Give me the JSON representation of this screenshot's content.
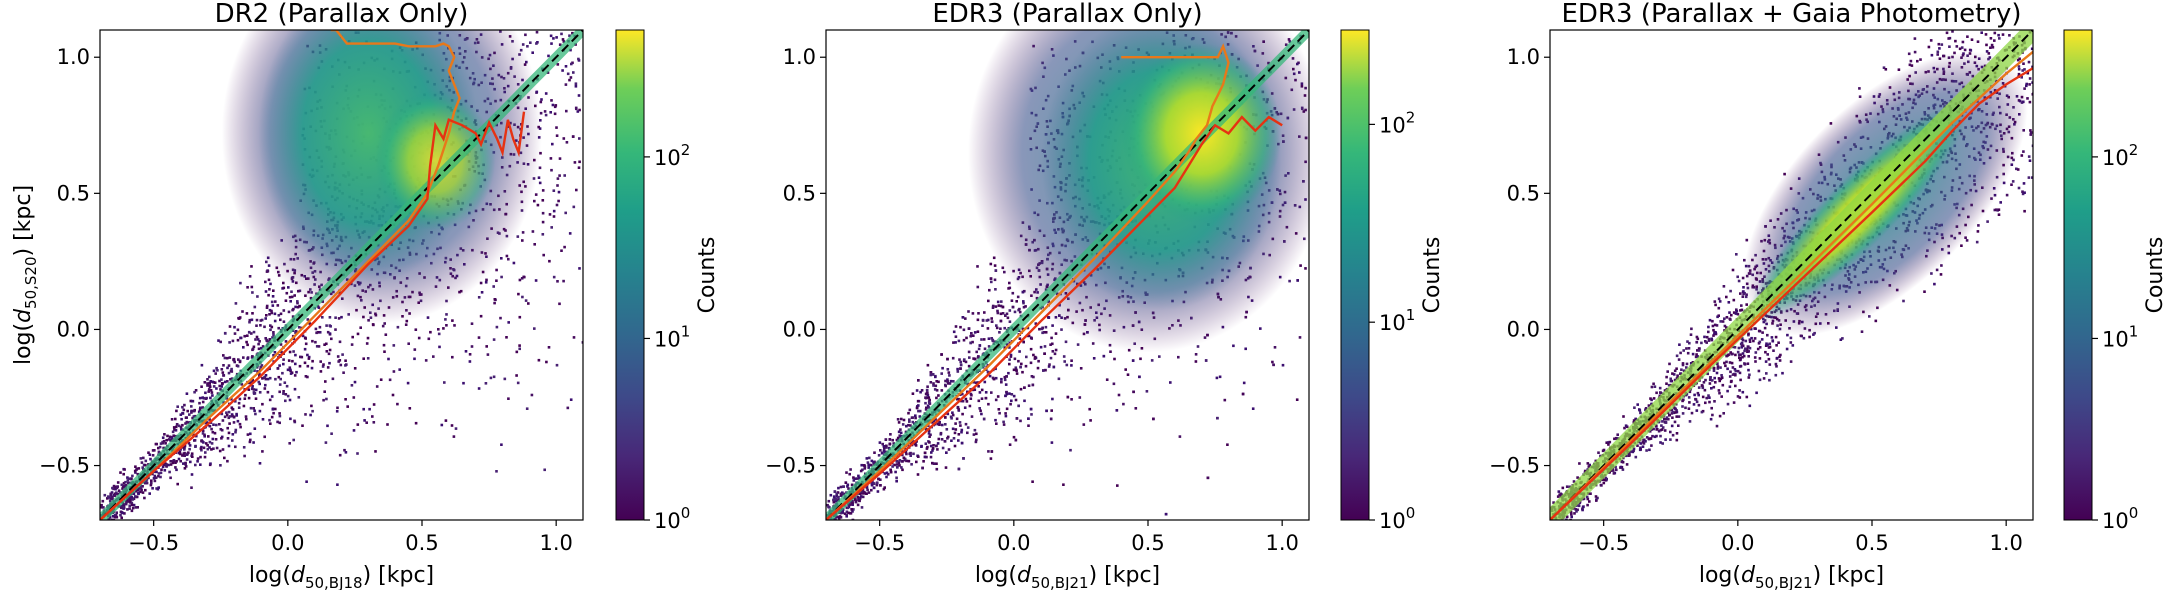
{
  "chart_data": [
    {
      "type": "heatmap",
      "title": "DR2 (Parallax Only)",
      "xlabel_prefix": "log(",
      "xlabel_var": "d",
      "xlabel_sub": "50,BJ18",
      "xlabel_suffix": ") [kpc]",
      "ylabel_prefix": "log(",
      "ylabel_var": "d",
      "ylabel_sub": "50,S20",
      "ylabel_suffix": ") [kpc]",
      "xlim": [
        -0.7,
        1.1
      ],
      "ylim": [
        -0.7,
        1.1
      ],
      "xticks": [
        "−0.5",
        "0.0",
        "0.5",
        "1.0"
      ],
      "yticks": [
        "−0.5",
        "0.0",
        "0.5",
        "1.0"
      ],
      "colorbar": {
        "label": "Counts",
        "scale": "log",
        "range": [
          1,
          500
        ],
        "ticks": [
          "10",
          "10",
          "10"
        ],
        "tick_exponents": [
          "0",
          "1",
          "2"
        ]
      },
      "reference_line": {
        "style": "dashed",
        "color": "#000000",
        "x": [
          -0.7,
          1.1
        ],
        "y": [
          -0.7,
          1.1
        ]
      },
      "series": [
        {
          "color": "#e8781a",
          "x": [
            -0.7,
            -0.5,
            -0.3,
            -0.1,
            0.1,
            0.3,
            0.45,
            0.52,
            0.56,
            0.6,
            0.62,
            0.64,
            0.62,
            0.6,
            0.62,
            0.6,
            0.58,
            0.55,
            0.5,
            0.45,
            0.4,
            0.3,
            0.22,
            0.18,
            0.16
          ],
          "y": [
            -0.7,
            -0.52,
            -0.33,
            -0.15,
            0.05,
            0.25,
            0.4,
            0.5,
            0.6,
            0.72,
            0.8,
            0.85,
            0.9,
            0.95,
            1.0,
            1.04,
            1.05,
            1.04,
            1.04,
            1.04,
            1.05,
            1.05,
            1.05,
            1.1,
            1.1
          ]
        },
        {
          "color": "#e63212",
          "x": [
            -0.7,
            -0.5,
            -0.3,
            -0.1,
            0.1,
            0.3,
            0.45,
            0.52,
            0.53,
            0.55,
            0.58,
            0.6,
            0.65,
            0.7,
            0.72,
            0.75,
            0.78,
            0.8,
            0.82,
            0.84,
            0.86,
            0.88
          ],
          "y": [
            -0.7,
            -0.52,
            -0.35,
            -0.17,
            0.03,
            0.24,
            0.38,
            0.48,
            0.6,
            0.75,
            0.7,
            0.77,
            0.75,
            0.72,
            0.68,
            0.76,
            0.7,
            0.65,
            0.77,
            0.7,
            0.65,
            0.8
          ]
        }
      ]
    },
    {
      "type": "heatmap",
      "title": "EDR3 (Parallax Only)",
      "xlabel_prefix": "log(",
      "xlabel_var": "d",
      "xlabel_sub": "50,BJ21",
      "xlabel_suffix": ") [kpc]",
      "xlim": [
        -0.7,
        1.1
      ],
      "ylim": [
        -0.7,
        1.1
      ],
      "xticks": [
        "−0.5",
        "0.0",
        "0.5",
        "1.0"
      ],
      "yticks": [
        "−0.5",
        "0.0",
        "0.5",
        "1.0"
      ],
      "colorbar": {
        "label": "Counts",
        "scale": "log",
        "range": [
          1,
          300
        ],
        "ticks": [
          "10",
          "10",
          "10"
        ],
        "tick_exponents": [
          "0",
          "1",
          "2"
        ]
      },
      "reference_line": {
        "style": "dashed",
        "color": "#000000",
        "x": [
          -0.7,
          1.1
        ],
        "y": [
          -0.7,
          1.1
        ]
      },
      "series": [
        {
          "color": "#e8781a",
          "x": [
            -0.7,
            -0.5,
            -0.3,
            -0.1,
            0.1,
            0.3,
            0.5,
            0.6,
            0.65,
            0.68,
            0.72,
            0.74,
            0.76,
            0.78,
            0.8,
            0.78,
            0.76,
            0.7,
            0.55,
            0.4
          ],
          "y": [
            -0.7,
            -0.52,
            -0.33,
            -0.14,
            0.06,
            0.26,
            0.47,
            0.58,
            0.65,
            0.7,
            0.75,
            0.82,
            0.86,
            0.9,
            0.98,
            1.04,
            1.0,
            1.0,
            1.0,
            1.0
          ]
        },
        {
          "color": "#e63212",
          "x": [
            -0.7,
            -0.5,
            -0.3,
            -0.1,
            0.1,
            0.3,
            0.5,
            0.6,
            0.65,
            0.7,
            0.75,
            0.8,
            0.85,
            0.9,
            0.95,
            1.0
          ],
          "y": [
            -0.7,
            -0.53,
            -0.35,
            -0.17,
            0.03,
            0.22,
            0.42,
            0.52,
            0.6,
            0.68,
            0.75,
            0.72,
            0.78,
            0.73,
            0.78,
            0.75
          ]
        }
      ]
    },
    {
      "type": "heatmap",
      "title": "EDR3 (Parallax + Gaia Photometry)",
      "xlabel_prefix": "log(",
      "xlabel_var": "d",
      "xlabel_sub": "50,BJ21",
      "xlabel_suffix": ") [kpc]",
      "xlim": [
        -0.7,
        1.1
      ],
      "ylim": [
        -0.7,
        1.1
      ],
      "xticks": [
        "−0.5",
        "0.0",
        "0.5",
        "1.0"
      ],
      "yticks": [
        "−0.5",
        "0.0",
        "0.5",
        "1.0"
      ],
      "colorbar": {
        "label": "Counts",
        "scale": "log",
        "range": [
          1,
          500
        ],
        "ticks": [
          "10",
          "10",
          "10"
        ],
        "tick_exponents": [
          "0",
          "1",
          "2"
        ]
      },
      "reference_line": {
        "style": "dashed",
        "color": "#000000",
        "x": [
          -0.7,
          1.1
        ],
        "y": [
          -0.7,
          1.1
        ]
      },
      "series": [
        {
          "color": "#e8781a",
          "x": [
            -0.7,
            -0.4,
            -0.1,
            0.2,
            0.5,
            0.8,
            1.0,
            1.1
          ],
          "y": [
            -0.7,
            -0.41,
            -0.12,
            0.17,
            0.46,
            0.76,
            0.94,
            1.02
          ]
        },
        {
          "color": "#e63212",
          "x": [
            -0.7,
            -0.4,
            -0.1,
            0.2,
            0.5,
            0.7,
            0.8,
            0.9,
            1.0,
            1.1
          ],
          "y": [
            -0.7,
            -0.42,
            -0.13,
            0.15,
            0.43,
            0.62,
            0.73,
            0.83,
            0.9,
            0.96
          ]
        }
      ]
    }
  ]
}
